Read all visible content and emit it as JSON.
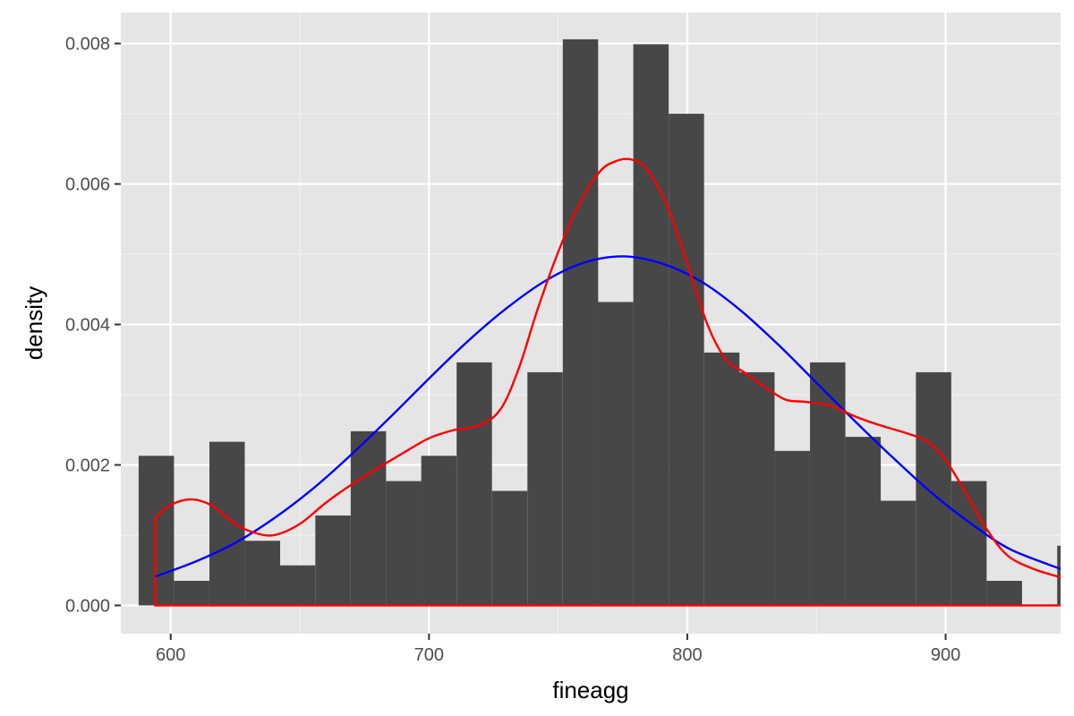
{
  "chart_data": {
    "type": "bar",
    "xlabel": "fineagg",
    "ylabel": "density",
    "xlim": [
      580.7,
      944.5
    ],
    "ylim": [
      -0.000402,
      0.008441
    ],
    "x_ticks": [
      600,
      700,
      800,
      900
    ],
    "x_tick_labels": [
      "600",
      "700",
      "800",
      "900"
    ],
    "y_ticks": [
      0,
      0.002,
      0.004,
      0.006,
      0.008
    ],
    "y_tick_labels": [
      "0.000",
      "0.002",
      "0.004",
      "0.006",
      "0.008"
    ],
    "x_minor_ticks": [
      650,
      750,
      850
    ],
    "y_minor_ticks": [
      0.001,
      0.003,
      0.005,
      0.007
    ],
    "grid": true,
    "histogram": {
      "bin_width": 13.68,
      "bin_starts": [
        587.6,
        601.3,
        615.0,
        628.7,
        642.3,
        656.0,
        669.7,
        683.4,
        697.0,
        710.7,
        724.4,
        738.1,
        751.8,
        765.4,
        779.1,
        792.8,
        806.5,
        820.1,
        833.8,
        847.5,
        861.2,
        874.8,
        888.5,
        902.2,
        915.9,
        929.6,
        943.2
      ],
      "densities": [
        0.00213,
        0.00035,
        0.00233,
        0.00092,
        0.00057,
        0.00128,
        0.00248,
        0.00177,
        0.00213,
        0.00346,
        0.00163,
        0.00332,
        0.00806,
        0.00432,
        0.00799,
        0.007,
        0.0036,
        0.00332,
        0.0022,
        0.00346,
        0.0024,
        0.00149,
        0.00332,
        0.00177,
        0.00035,
        0.0,
        0.00085
      ],
      "color": "#474747"
    },
    "series": [
      {
        "type": "line",
        "color": "#0000ff",
        "x": [
          594.0,
          610,
          625,
          640,
          655,
          670,
          685,
          700,
          715,
          730,
          745,
          760,
          775,
          790,
          805,
          820,
          835,
          850,
          865,
          880,
          895,
          910,
          925,
          944.5
        ],
        "values": [
          0.00041,
          0.00063,
          0.00089,
          0.00124,
          0.00166,
          0.00215,
          0.00268,
          0.00323,
          0.00376,
          0.00423,
          0.00462,
          0.00488,
          0.00497,
          0.00487,
          0.00462,
          0.00422,
          0.00372,
          0.00317,
          0.00262,
          0.00209,
          0.00159,
          0.00116,
          0.0008,
          0.00052
        ]
      },
      {
        "type": "line",
        "color": "#ff0000",
        "x": [
          594.0,
          600,
          608,
          616,
          625,
          632,
          640,
          650,
          660,
          670,
          680,
          690,
          700,
          710,
          720,
          728,
          735,
          742,
          750,
          758,
          766,
          772,
          778,
          784,
          792,
          800,
          808,
          815,
          822,
          830,
          838,
          845,
          855,
          865,
          875,
          885,
          893,
          900,
          908,
          916,
          924,
          934,
          944.5
        ],
        "values": [
          0.00125,
          0.00143,
          0.00151,
          0.00142,
          0.00116,
          0.00104,
          0.001,
          0.00116,
          0.00146,
          0.00172,
          0.00195,
          0.00217,
          0.00238,
          0.0025,
          0.00257,
          0.00281,
          0.0034,
          0.00421,
          0.00503,
          0.0057,
          0.00617,
          0.00632,
          0.00635,
          0.00622,
          0.00571,
          0.00486,
          0.00398,
          0.0035,
          0.00332,
          0.00311,
          0.00293,
          0.0029,
          0.00285,
          0.00269,
          0.00256,
          0.00245,
          0.00233,
          0.00207,
          0.00159,
          0.00108,
          0.00071,
          0.00052,
          0.0004
        ]
      }
    ],
    "density_baseline": {
      "color": "#ff0000",
      "x_start": 594.0,
      "x_end": 944.5,
      "y": 0
    }
  }
}
